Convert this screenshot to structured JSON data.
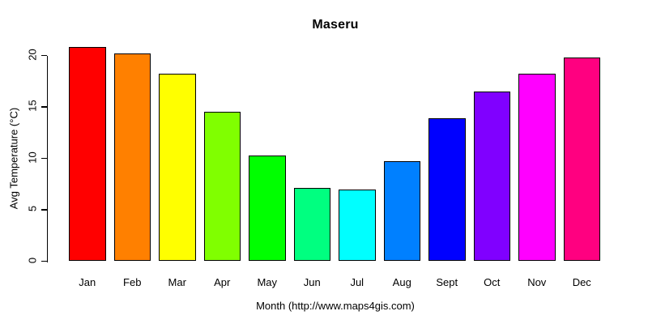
{
  "chart_data": {
    "type": "bar",
    "title": "Maseru",
    "xlabel": "Month (http://www.maps4gis.com)",
    "ylabel": "Avg Temperature (°C)",
    "categories": [
      "Jan",
      "Feb",
      "Mar",
      "Apr",
      "May",
      "Jun",
      "Jul",
      "Aug",
      "Sept",
      "Oct",
      "Nov",
      "Dec"
    ],
    "values": [
      20.8,
      20.2,
      18.2,
      14.5,
      10.3,
      7.1,
      7.0,
      9.7,
      13.9,
      16.5,
      18.2,
      19.8
    ],
    "bar_colors": [
      "#FF0000",
      "#FF8000",
      "#FFFF00",
      "#80FF00",
      "#00FF00",
      "#00FF80",
      "#00FFFF",
      "#0080FF",
      "#0000FF",
      "#8000FF",
      "#FF00FF",
      "#FF0080"
    ],
    "bar_border_color": "#000000",
    "yticks": [
      0,
      5,
      10,
      15,
      20
    ],
    "ylim": [
      0,
      20
    ],
    "grid": false,
    "legend": null,
    "background_color": "#FFFFFF",
    "text_color": "#000000"
  }
}
